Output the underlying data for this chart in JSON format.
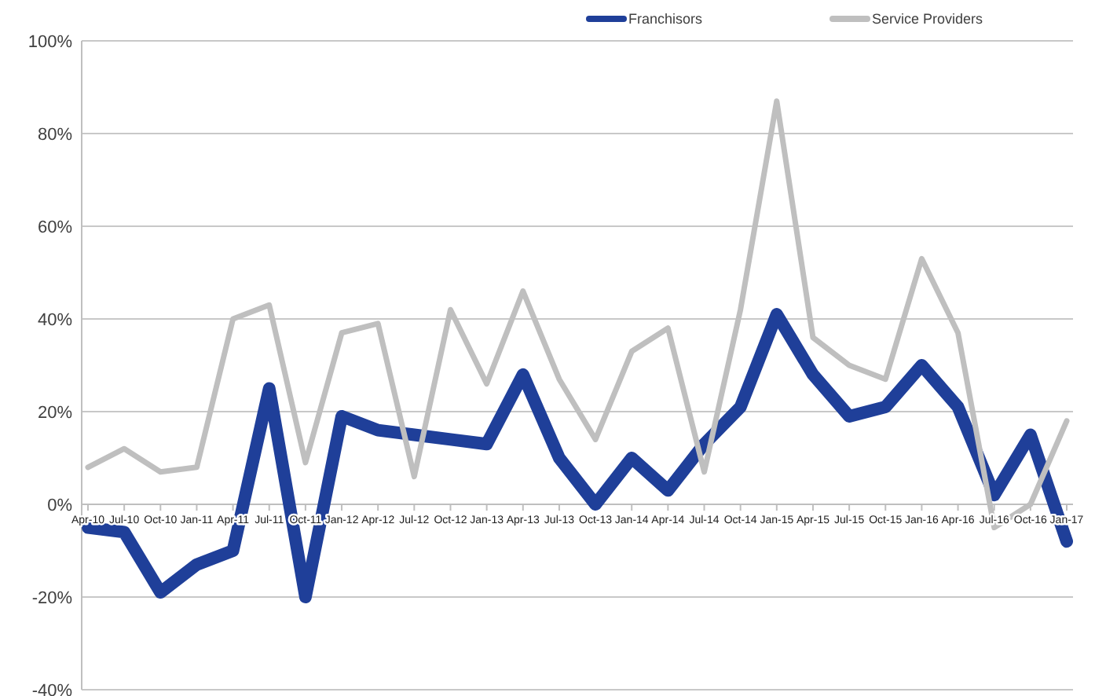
{
  "chart_data": {
    "type": "line",
    "categories": [
      "Apr-10",
      "Jul-10",
      "Oct-10",
      "Jan-11",
      "Apr-11",
      "Jul-11",
      "Oct-11",
      "Jan-12",
      "Apr-12",
      "Jul-12",
      "Oct-12",
      "Jan-13",
      "Apr-13",
      "Jul-13",
      "Oct-13",
      "Jan-14",
      "Apr-14",
      "Jul-14",
      "Oct-14",
      "Jan-15",
      "Apr-15",
      "Jul-15",
      "Oct-15",
      "Jan-16",
      "Apr-16",
      "Jul-16",
      "Oct-16",
      "Jan-17"
    ],
    "series": [
      {
        "name": "Franchisors",
        "color": "#1f3f99",
        "values": [
          -5,
          -6,
          -19,
          -13,
          -10,
          25,
          -20,
          19,
          16,
          15,
          14,
          13,
          28,
          10,
          0,
          10,
          3,
          13,
          21,
          41,
          28,
          19,
          21,
          30,
          21,
          2,
          15,
          -8
        ]
      },
      {
        "name": "Service Providers",
        "color": "#bfbfbf",
        "values": [
          8,
          12,
          7,
          8,
          40,
          43,
          9,
          37,
          39,
          6,
          42,
          26,
          46,
          27,
          14,
          33,
          38,
          7,
          42,
          87,
          36,
          30,
          27,
          53,
          37,
          -5,
          0,
          18
        ]
      }
    ],
    "ylim": [
      -40,
      100
    ],
    "yticks": [
      {
        "value": -40,
        "label": "-40%"
      },
      {
        "value": -20,
        "label": "-20%"
      },
      {
        "value": 0,
        "label": "0%"
      },
      {
        "value": 20,
        "label": "20%"
      },
      {
        "value": 40,
        "label": "40%"
      },
      {
        "value": 60,
        "label": "60%"
      },
      {
        "value": 80,
        "label": "80%"
      },
      {
        "value": 100,
        "label": "100%"
      }
    ],
    "grid": "y",
    "legend": "top right",
    "marker": "none",
    "line_style": "solid"
  }
}
